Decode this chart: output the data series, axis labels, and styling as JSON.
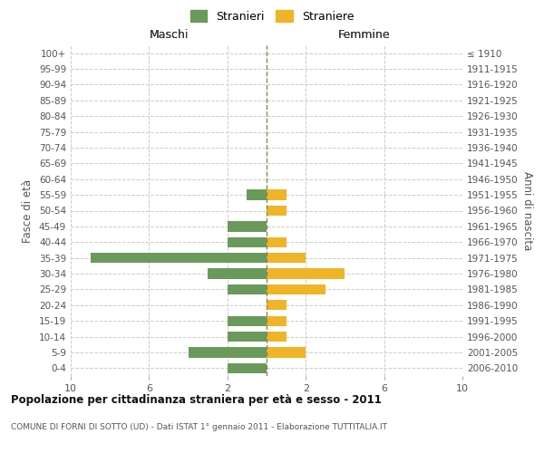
{
  "age_groups": [
    "0-4",
    "5-9",
    "10-14",
    "15-19",
    "20-24",
    "25-29",
    "30-34",
    "35-39",
    "40-44",
    "45-49",
    "50-54",
    "55-59",
    "60-64",
    "65-69",
    "70-74",
    "75-79",
    "80-84",
    "85-89",
    "90-94",
    "95-99",
    "100+"
  ],
  "birth_years": [
    "2006-2010",
    "2001-2005",
    "1996-2000",
    "1991-1995",
    "1986-1990",
    "1981-1985",
    "1976-1980",
    "1971-1975",
    "1966-1970",
    "1961-1965",
    "1956-1960",
    "1951-1955",
    "1946-1950",
    "1941-1945",
    "1936-1940",
    "1931-1935",
    "1926-1930",
    "1921-1925",
    "1916-1920",
    "1911-1915",
    "≤ 1910"
  ],
  "males": [
    2,
    4,
    2,
    2,
    0,
    2,
    3,
    9,
    2,
    2,
    0,
    1,
    0,
    0,
    0,
    0,
    0,
    0,
    0,
    0,
    0
  ],
  "females": [
    0,
    2,
    1,
    1,
    1,
    3,
    4,
    2,
    1,
    0,
    1,
    1,
    0,
    0,
    0,
    0,
    0,
    0,
    0,
    0,
    0
  ],
  "male_color": "#6a9a5b",
  "female_color": "#f0b429",
  "center_line_color": "#8a8a4a",
  "grid_color": "#cccccc",
  "title": "Popolazione per cittadinanza straniera per età e sesso - 2011",
  "subtitle": "COMUNE DI FORNI DI SOTTO (UD) - Dati ISTAT 1° gennaio 2011 - Elaborazione TUTTITALIA.IT",
  "legend_male_label": "Stranieri",
  "legend_female_label": "Straniere",
  "xlabel_left": "Maschi",
  "xlabel_right": "Femmine",
  "ylabel_left": "Fasce di età",
  "ylabel_right": "Anni di nascita",
  "xlim": 10
}
